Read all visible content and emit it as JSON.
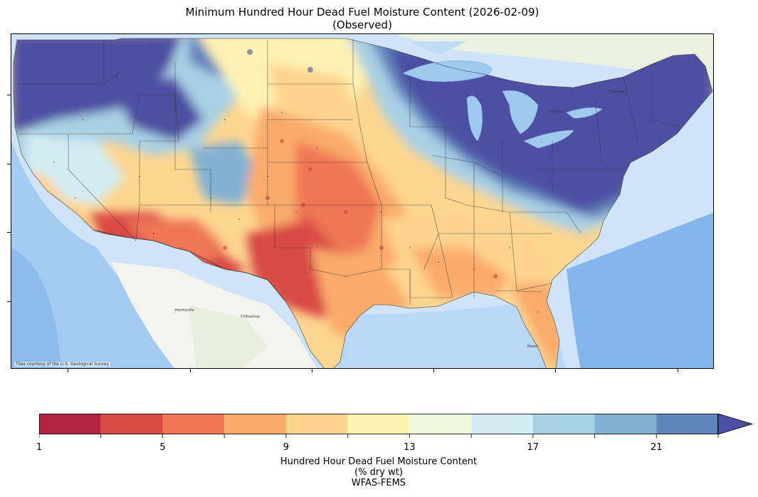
{
  "title": {
    "line1": "Minimum Hundred Hour Dead Fuel Moisture Content (2026-02-09)",
    "line2": "(Observed)"
  },
  "map": {
    "attribution": "Tiles courtesy of the U.S. Geological Survey",
    "basemap": "USGS topo tiles",
    "region": "Contiguous United States"
  },
  "colorbar": {
    "label_line1": "Hundred Hour Dead Fuel Moisture Content",
    "label_line2": "(% dry wt)",
    "label_line3": "WFAS-FEMS",
    "extend": "max",
    "bins": [
      1,
      3,
      5,
      7,
      9,
      11,
      13,
      15,
      17,
      19,
      21,
      23
    ],
    "tick_labels": [
      "1",
      "5",
      "9",
      "13",
      "17",
      "21"
    ],
    "tick_values": [
      1,
      5,
      9,
      13,
      17,
      21
    ],
    "colors": [
      "#b2233f",
      "#d94a45",
      "#ee7655",
      "#faab6c",
      "#fed48f",
      "#fef3b3",
      "#f0f8dc",
      "#d3ecf4",
      "#a8d0e4",
      "#82b1d4",
      "#6284bd",
      "#4e4fa2"
    ]
  }
}
